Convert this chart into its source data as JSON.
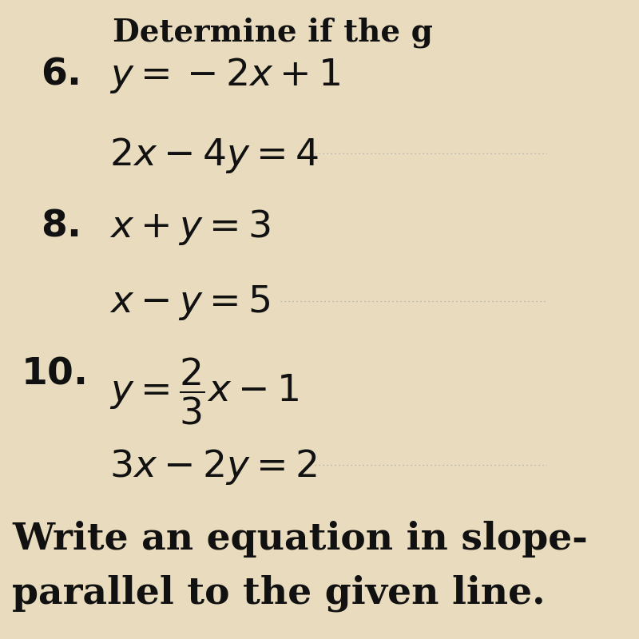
{
  "background_color": "#e8dbbe",
  "text_color": "#111111",
  "line_color": "#aaaaaa",
  "header": "Determine if the g",
  "items": [
    {
      "number": "6.",
      "eq1": "$y = -2x + 1$",
      "eq2": "$2x - 4y = 4$"
    },
    {
      "number": "8.",
      "eq1": "$x + y = 3$",
      "eq2": "$x - y = 5$"
    },
    {
      "number": "10.",
      "eq1": "$y = \\dfrac{2}{3}x - 1$",
      "eq2": "$3x - 2y = 2$"
    }
  ],
  "footer1": "Write an equation in slope-",
  "footer2": "parallel to the given line.",
  "header_fontsize": 28,
  "number_fontsize": 34,
  "eq_fontsize": 34,
  "footer_fontsize": 34,
  "fig_width": 8.0,
  "fig_height": 8.0,
  "dpi": 100
}
